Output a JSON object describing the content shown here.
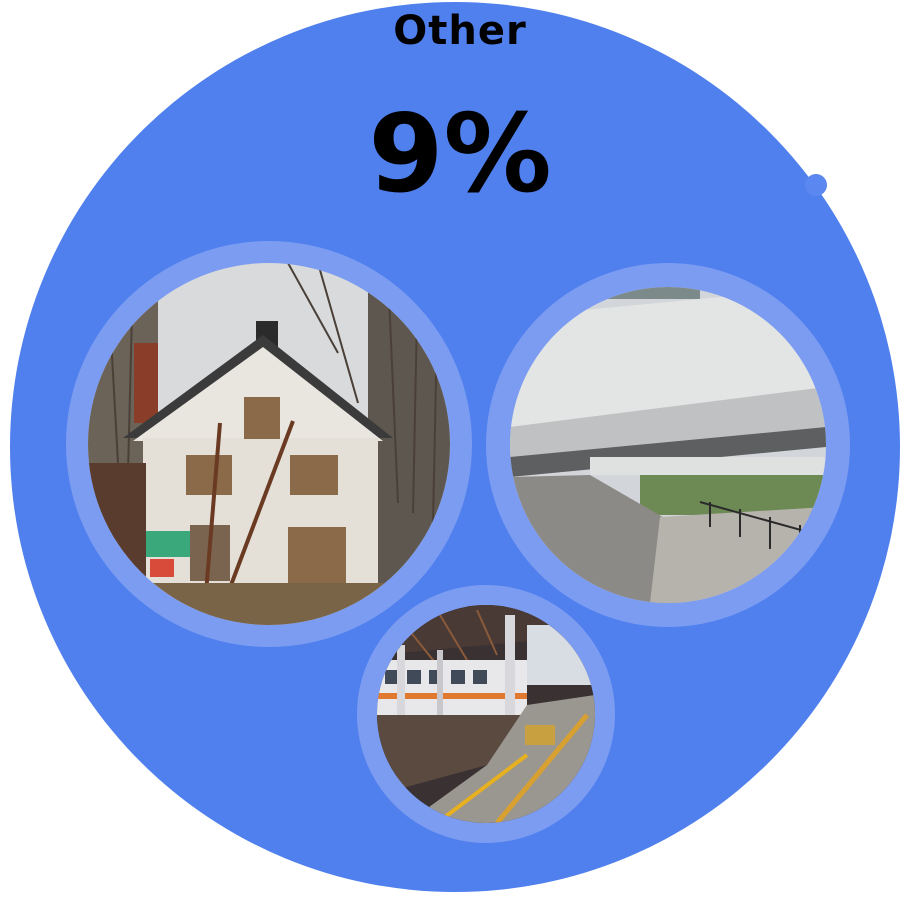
{
  "category": {
    "label": "Other",
    "percent": "9%"
  },
  "colors": {
    "bubble": "#5080EE",
    "ring": "#7C9CF2",
    "text": "#000000"
  },
  "photos": [
    {
      "name": "abandoned-house-photo"
    },
    {
      "name": "bridge-underpass-photo"
    },
    {
      "name": "train-platform-photo"
    }
  ]
}
